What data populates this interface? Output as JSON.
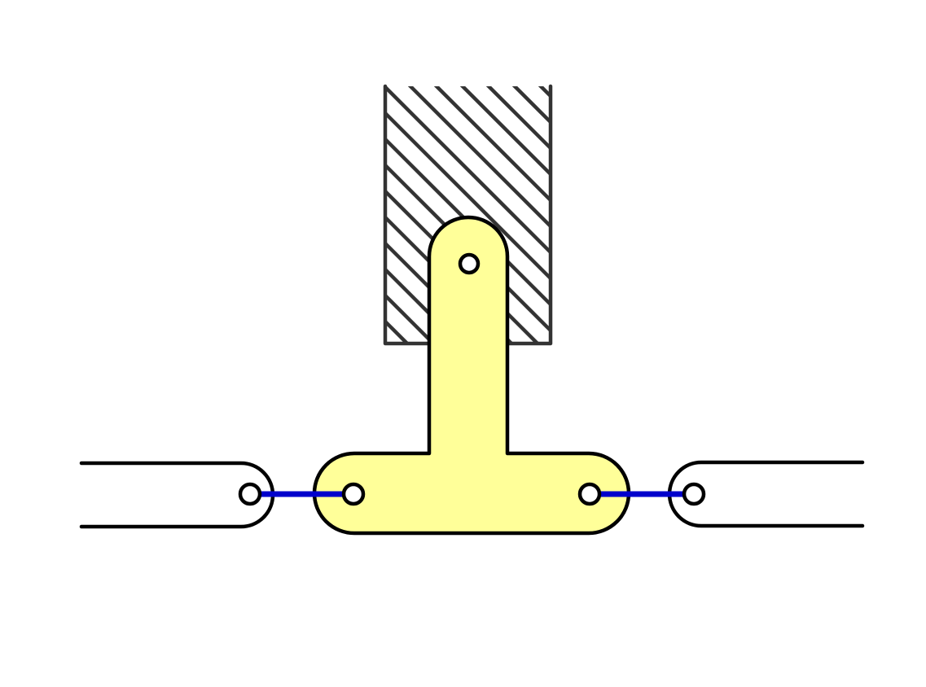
{
  "diagram": {
    "colors": {
      "background": "#ffffff",
      "outline": "#000000",
      "hatch": "#333333",
      "lever_fill": "#ffff99",
      "connector": "#0000cc",
      "pin_fill": "#ffffff"
    },
    "components": [
      "fixed-support-hatched",
      "t-shaped-lever",
      "pivot-pin",
      "left-link-bar",
      "right-link-bar",
      "left-connector-rod",
      "right-connector-rod"
    ]
  }
}
